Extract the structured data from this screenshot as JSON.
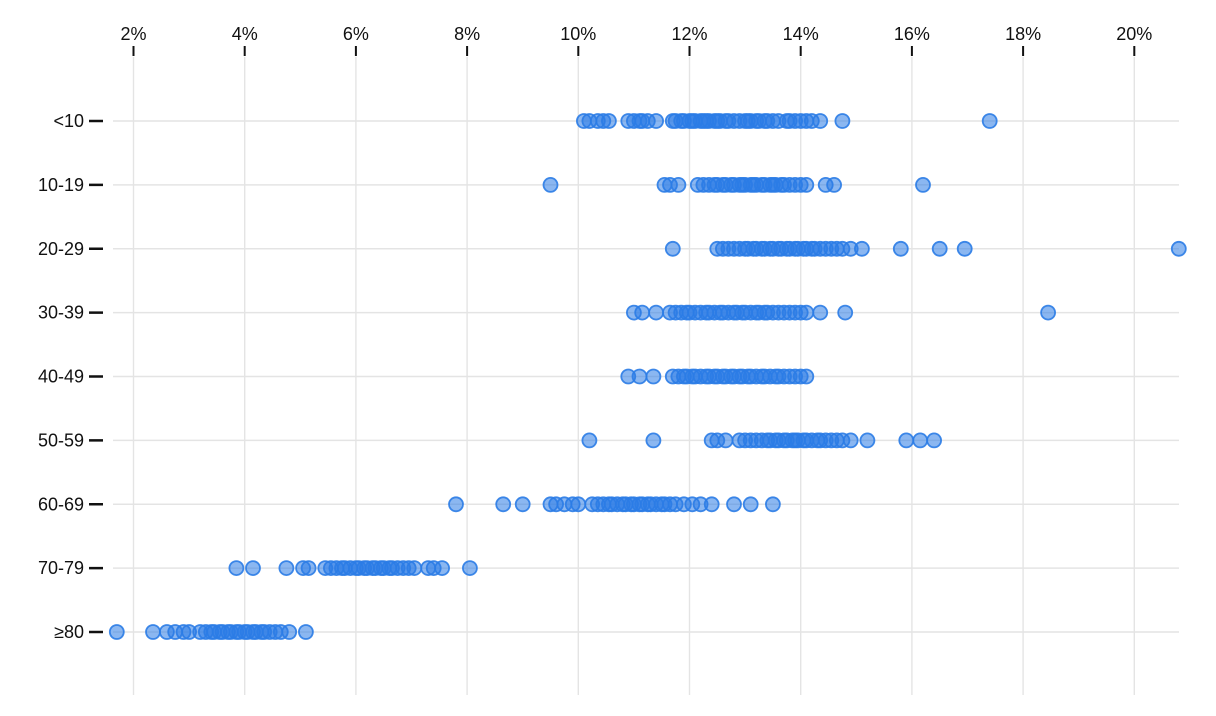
{
  "chart_data": {
    "type": "scatter",
    "variant": "strip-plot",
    "title": "",
    "xlabel": "",
    "ylabel": "",
    "grid": true,
    "legend": false,
    "x_axis": {
      "position": "top",
      "ticks": [
        2,
        4,
        6,
        8,
        10,
        12,
        14,
        16,
        18,
        20
      ],
      "tick_labels": [
        "2%",
        "4%",
        "6%",
        "8%",
        "10%",
        "12%",
        "14%",
        "16%",
        "18%",
        "20%"
      ],
      "xlim": [
        1.55,
        21.0
      ]
    },
    "categories": [
      "<10",
      "10-19",
      "20-29",
      "30-39",
      "40-49",
      "50-59",
      "60-69",
      "70-79",
      "≥80"
    ],
    "series": [
      {
        "category": "<10",
        "values": [
          10.1,
          10.2,
          10.35,
          10.45,
          10.55,
          10.9,
          11.0,
          11.1,
          11.15,
          11.25,
          11.4,
          11.7,
          11.75,
          11.85,
          11.9,
          12.0,
          12.05,
          12.1,
          12.2,
          12.25,
          12.3,
          12.35,
          12.45,
          12.5,
          12.55,
          12.65,
          12.7,
          12.8,
          12.9,
          13.0,
          13.05,
          13.1,
          13.2,
          13.25,
          13.35,
          13.4,
          13.5,
          13.6,
          13.75,
          13.8,
          13.9,
          14.0,
          14.1,
          14.2,
          14.35,
          14.75,
          17.4
        ]
      },
      {
        "category": "10-19",
        "values": [
          9.5,
          11.55,
          11.65,
          11.8,
          12.15,
          12.25,
          12.35,
          12.45,
          12.5,
          12.6,
          12.65,
          12.75,
          12.8,
          12.9,
          12.95,
          13.0,
          13.1,
          13.15,
          13.2,
          13.3,
          13.35,
          13.45,
          13.5,
          13.55,
          13.65,
          13.7,
          13.8,
          13.9,
          14.0,
          14.1,
          14.45,
          14.6,
          16.2
        ]
      },
      {
        "category": "20-29",
        "values": [
          11.7,
          12.5,
          12.6,
          12.7,
          12.8,
          12.9,
          13.0,
          13.05,
          13.15,
          13.2,
          13.3,
          13.35,
          13.45,
          13.5,
          13.6,
          13.65,
          13.75,
          13.8,
          13.9,
          13.95,
          14.05,
          14.1,
          14.2,
          14.25,
          14.35,
          14.45,
          14.55,
          14.65,
          14.75,
          14.9,
          15.1,
          15.8,
          16.5,
          16.95,
          20.8
        ]
      },
      {
        "category": "30-39",
        "values": [
          11.0,
          11.15,
          11.4,
          11.65,
          11.75,
          11.85,
          11.95,
          12.0,
          12.1,
          12.2,
          12.3,
          12.35,
          12.45,
          12.55,
          12.6,
          12.7,
          12.8,
          12.85,
          12.95,
          13.0,
          13.1,
          13.2,
          13.25,
          13.35,
          13.4,
          13.5,
          13.6,
          13.7,
          13.8,
          13.9,
          14.0,
          14.1,
          14.35,
          14.8,
          18.45
        ]
      },
      {
        "category": "40-49",
        "values": [
          10.9,
          11.1,
          11.35,
          11.7,
          11.8,
          11.9,
          11.95,
          12.05,
          12.1,
          12.2,
          12.3,
          12.35,
          12.45,
          12.5,
          12.6,
          12.65,
          12.75,
          12.8,
          12.9,
          12.95,
          13.05,
          13.1,
          13.2,
          13.3,
          13.35,
          13.45,
          13.55,
          13.6,
          13.7,
          13.8,
          13.9,
          14.0,
          14.1
        ]
      },
      {
        "category": "50-59",
        "values": [
          10.2,
          11.35,
          12.4,
          12.5,
          12.65,
          12.9,
          13.0,
          13.1,
          13.2,
          13.3,
          13.4,
          13.45,
          13.55,
          13.6,
          13.7,
          13.75,
          13.85,
          13.9,
          13.95,
          14.05,
          14.1,
          14.2,
          14.3,
          14.35,
          14.45,
          14.55,
          14.65,
          14.75,
          14.9,
          15.2,
          15.9,
          16.15,
          16.4
        ]
      },
      {
        "category": "60-69",
        "values": [
          7.8,
          8.65,
          9.0,
          9.5,
          9.6,
          9.75,
          9.9,
          10.0,
          10.25,
          10.35,
          10.45,
          10.55,
          10.6,
          10.7,
          10.8,
          10.85,
          10.95,
          11.0,
          11.1,
          11.15,
          11.25,
          11.3,
          11.4,
          11.5,
          11.55,
          11.65,
          11.75,
          11.9,
          12.05,
          12.2,
          12.4,
          12.8,
          13.1,
          13.5
        ]
      },
      {
        "category": "70-79",
        "values": [
          3.85,
          4.15,
          4.75,
          5.05,
          5.15,
          5.45,
          5.55,
          5.65,
          5.75,
          5.8,
          5.9,
          6.0,
          6.05,
          6.15,
          6.2,
          6.3,
          6.35,
          6.45,
          6.5,
          6.6,
          6.65,
          6.75,
          6.85,
          6.95,
          7.05,
          7.3,
          7.4,
          7.55,
          8.05
        ]
      },
      {
        "category": "≥80",
        "values": [
          1.7,
          2.35,
          2.6,
          2.75,
          2.9,
          3.0,
          3.2,
          3.3,
          3.4,
          3.45,
          3.55,
          3.6,
          3.7,
          3.75,
          3.85,
          3.9,
          4.0,
          4.05,
          4.15,
          4.2,
          4.3,
          4.35,
          4.45,
          4.55,
          4.65,
          4.8,
          5.1
        ]
      }
    ],
    "style": {
      "point_color": "#2B7CE6",
      "point_fill_opacity": 0.55,
      "point_stroke_opacity": 0.9,
      "point_radius": 7,
      "point_stroke_width": 1.8,
      "gridline_color": "#E4E4E4",
      "tick_color": "#111111",
      "label_color": "#111111",
      "background": "#FFFFFF"
    }
  }
}
